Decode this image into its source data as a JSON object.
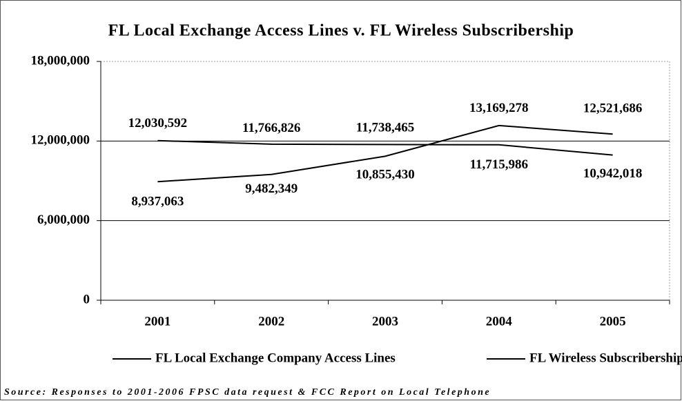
{
  "chart_data": {
    "type": "line",
    "title": "FL Local Exchange Access Lines v. FL Wireless Subscribership",
    "categories": [
      "2001",
      "2002",
      "2003",
      "2004",
      "2005"
    ],
    "series": [
      {
        "name": "FL Local Exchange Company Access Lines",
        "color": "#000000",
        "values": [
          12030592,
          11766826,
          11738465,
          11715986,
          10942018
        ],
        "value_labels": [
          "12,030,592",
          "11,766,826",
          "11,738,465",
          "11,715,986",
          "10,942,018"
        ]
      },
      {
        "name": "FL Wireless Subscribership",
        "color": "#000000",
        "values": [
          8937063,
          9482349,
          10855430,
          13169278,
          12521686
        ],
        "value_labels": [
          "8,937,063",
          "9,482,349",
          "10,855,430",
          "13,169,278",
          "12,521,686"
        ]
      }
    ],
    "ylim": [
      0,
      18000000
    ],
    "yticks": [
      0,
      {
        "value": 6000000,
        "label": "6,000,000"
      },
      {
        "value": 12000000,
        "label": "12,000,000"
      },
      {
        "value": 18000000,
        "label": "18,000,000"
      }
    ],
    "grid": true,
    "legend": "bottom",
    "source": "Source: Responses to 2001-2006 FPSC data request & FCC Report on Local Telephone"
  }
}
